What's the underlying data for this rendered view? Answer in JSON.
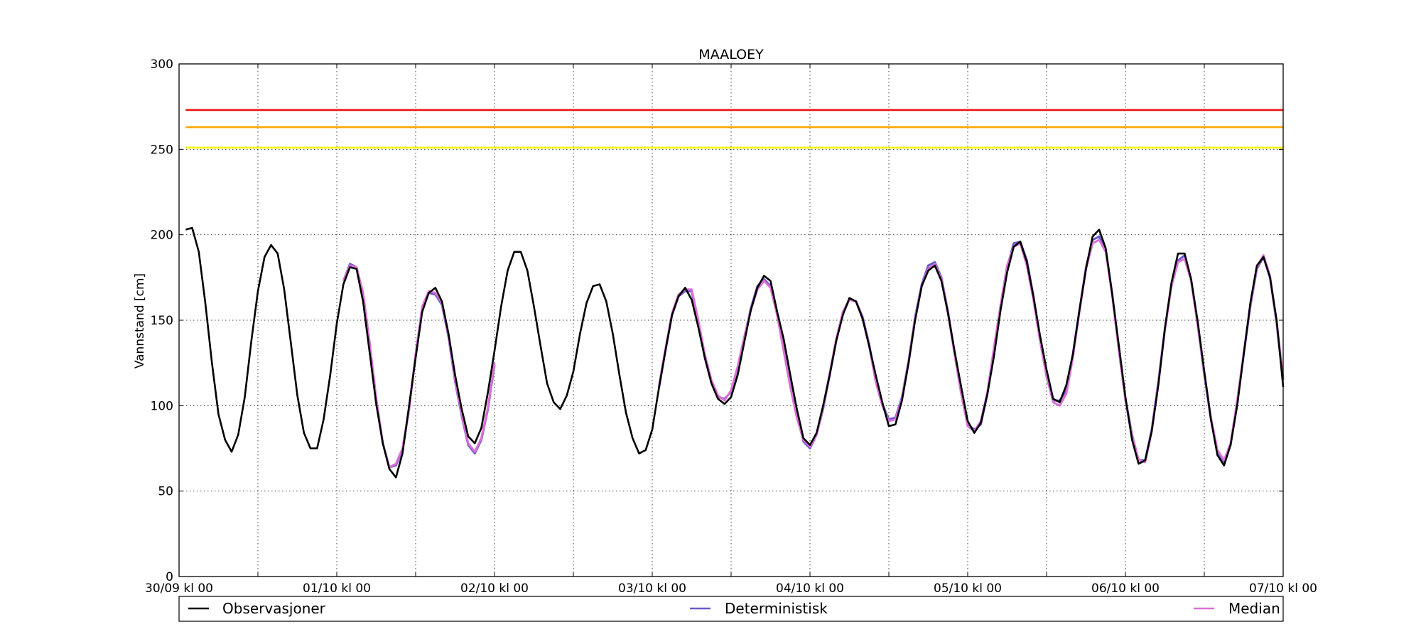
{
  "chart_data": {
    "type": "line",
    "title": "MAALOEY",
    "ylabel": "Vannstand [cm]",
    "xlabel": "",
    "x_unit": "hours since 30/09 kl 00",
    "xlim": [
      0,
      168
    ],
    "ylim": [
      0,
      300
    ],
    "x_ticks": [
      {
        "x": 0,
        "label": "30/09 kl 00"
      },
      {
        "x": 24,
        "label": "01/10 kl 00"
      },
      {
        "x": 48,
        "label": "02/10 kl 00"
      },
      {
        "x": 72,
        "label": "03/10 kl 00"
      },
      {
        "x": 96,
        "label": "04/10 kl 00"
      },
      {
        "x": 120,
        "label": "05/10 kl 00"
      },
      {
        "x": 144,
        "label": "06/10 kl 00"
      },
      {
        "x": 168,
        "label": "07/10 kl 00"
      }
    ],
    "x_minor_ticks": [
      12,
      36,
      60,
      84,
      108,
      132,
      156
    ],
    "y_ticks": [
      0,
      50,
      100,
      150,
      200,
      250,
      300
    ],
    "grid": true,
    "legend_position": "bottom",
    "thresholds": [
      {
        "value": 273,
        "color": "#ee1111"
      },
      {
        "value": 263,
        "color": "#ffa500"
      },
      {
        "value": 251,
        "color": "#ffff00"
      }
    ],
    "series": [
      {
        "name": "Observasjoner",
        "color": "#000000",
        "x": [
          1,
          2,
          3,
          4,
          5,
          6,
          7,
          8,
          9,
          10,
          11,
          12,
          13,
          14,
          15,
          16,
          17,
          18,
          19,
          20,
          21,
          22,
          23,
          24,
          25,
          26,
          27,
          28,
          29,
          30,
          31,
          32,
          33,
          34,
          35,
          36,
          37,
          38,
          39,
          40,
          41,
          42,
          43,
          44,
          45,
          46,
          47,
          48,
          49,
          50,
          51,
          52,
          53,
          54,
          55,
          56,
          57,
          58,
          59,
          60,
          61,
          62,
          63,
          64,
          65,
          66,
          67,
          68,
          69,
          70,
          71,
          72,
          73,
          74,
          75,
          76,
          77,
          78,
          79,
          80,
          81,
          82,
          83,
          84,
          85,
          86,
          87,
          88,
          89,
          90,
          91,
          92,
          93,
          94,
          95,
          96,
          97,
          98,
          99,
          100,
          101,
          102,
          103,
          104,
          105,
          106,
          107,
          108,
          109,
          110,
          111,
          112,
          113,
          114,
          115,
          116,
          117,
          118,
          119,
          120,
          121,
          122,
          123,
          124,
          125,
          126,
          127,
          128,
          129,
          130,
          131,
          132,
          133,
          134,
          135,
          136,
          137,
          138,
          139,
          140,
          141,
          142,
          143,
          144,
          145,
          146,
          147,
          148,
          149,
          150,
          151,
          152,
          153,
          154,
          155,
          156,
          157,
          158,
          159,
          160,
          161,
          162,
          163,
          164,
          165,
          166,
          167,
          168
        ],
        "values": [
          203,
          204,
          190,
          160,
          125,
          95,
          80,
          73,
          83,
          105,
          138,
          167,
          187,
          194,
          189,
          168,
          137,
          106,
          84,
          75,
          75,
          92,
          118,
          148,
          171,
          181,
          180,
          161,
          131,
          101,
          78,
          63,
          58,
          72,
          100,
          128,
          155,
          166,
          169,
          161,
          142,
          118,
          98,
          82,
          78,
          87,
          108,
          132,
          158,
          179,
          190,
          190,
          179,
          158,
          135,
          113,
          102,
          98,
          106,
          120,
          142,
          160,
          170,
          171,
          161,
          142,
          118,
          96,
          81,
          72,
          74,
          86,
          110,
          132,
          153,
          164,
          169,
          162,
          146,
          128,
          113,
          104,
          101,
          105,
          118,
          137,
          156,
          169,
          176,
          173,
          155,
          139,
          118,
          98,
          81,
          77,
          84,
          100,
          118,
          138,
          153,
          163,
          161,
          151,
          135,
          118,
          102,
          88,
          89,
          103,
          125,
          150,
          170,
          179,
          182,
          173,
          154,
          132,
          111,
          91,
          84,
          90,
          107,
          129,
          156,
          178,
          193,
          196,
          184,
          164,
          141,
          121,
          104,
          102,
          112,
          130,
          156,
          180,
          199,
          203,
          192,
          165,
          135,
          105,
          80,
          66,
          68,
          85,
          112,
          145,
          172,
          189,
          189,
          174,
          149,
          120,
          92,
          71,
          65,
          77,
          100,
          130,
          160,
          182,
          187,
          175,
          150,
          111
        ]
      },
      {
        "name": "Deterministisk",
        "color": "#6a5acd",
        "segments": [
          {
            "x": [
              25,
              26,
              27,
              28,
              29,
              30,
              31,
              32,
              33,
              34,
              35,
              36,
              37,
              38,
              39,
              40,
              41,
              42,
              43,
              44,
              45,
              46,
              47,
              48
            ],
            "values": [
              173,
              183,
              181,
              165,
              136,
              104,
              78,
              64,
              65,
              74,
              98,
              130,
              157,
              166,
              165,
              159,
              140,
              114,
              94,
              77,
              72,
              80,
              98,
              124
            ]
          },
          {
            "x": [
              73,
              74,
              75,
              76,
              77,
              78,
              79,
              80,
              81,
              82,
              83,
              84,
              85,
              86,
              87,
              88,
              89,
              90,
              91,
              92,
              93,
              94,
              95,
              96,
              97,
              98,
              99,
              100,
              101,
              102,
              103,
              104,
              105,
              106,
              107,
              108,
              109,
              110,
              111,
              112,
              113,
              114,
              115,
              116,
              117,
              118,
              119,
              120,
              121,
              122,
              123,
              124,
              125,
              126,
              127,
              128,
              129,
              130,
              131,
              132,
              133,
              134,
              135,
              136,
              137,
              138,
              139,
              140,
              141,
              142,
              143,
              144,
              145,
              146,
              147,
              148,
              149,
              150,
              151,
              152,
              153,
              154,
              155,
              156,
              157,
              158,
              159,
              160,
              161,
              162,
              163,
              164,
              165,
              166,
              167,
              168
            ],
            "values": [
              110,
              132,
              153,
              164,
              167,
              167,
              148,
              128,
              114,
              105,
              104,
              108,
              122,
              140,
              157,
              170,
              174,
              170,
              154,
              133,
              112,
              95,
              79,
              75,
              83,
              98,
              118,
              138,
              154,
              162,
              161,
              152,
              136,
              115,
              101,
              92,
              93,
              105,
              126,
              152,
              171,
              182,
              184,
              175,
              155,
              131,
              108,
              89,
              86,
              89,
              107,
              133,
              158,
              181,
              195,
              196,
              185,
              164,
              139,
              117,
              103,
              103,
              109,
              130,
              156,
              181,
              197,
              199,
              191,
              165,
              133,
              104,
              83,
              68,
              68,
              86,
              114,
              145,
              170,
              185,
              188,
              173,
              147,
              118,
              92,
              73,
              67,
              77,
              102,
              130,
              158,
              180,
              187,
              175,
              148,
              115
            ]
          }
        ]
      },
      {
        "name": "Median",
        "color": "#da70d6",
        "segments": [
          {
            "x": [
              25,
              26,
              27,
              28,
              29,
              30,
              31,
              32,
              33,
              34,
              35,
              36,
              37,
              38,
              39,
              40,
              41,
              42,
              43,
              44,
              45,
              46,
              47,
              48
            ],
            "values": [
              173,
              182,
              181,
              166,
              137,
              104,
              78,
              64,
              66,
              75,
              98,
              130,
              158,
              167,
              166,
              160,
              141,
              115,
              95,
              78,
              73,
              81,
              99,
              125
            ]
          },
          {
            "x": [
              73,
              74,
              75,
              76,
              77,
              78,
              79,
              80,
              81,
              82,
              83,
              84,
              85,
              86,
              87,
              88,
              89,
              90,
              91,
              92,
              93,
              94,
              95,
              96,
              97,
              98,
              99,
              100,
              101,
              102,
              103,
              104,
              105,
              106,
              107,
              108,
              109,
              110,
              111,
              112,
              113,
              114,
              115,
              116,
              117,
              118,
              119,
              120,
              121,
              122,
              123,
              124,
              125,
              126,
              127,
              128,
              129,
              130,
              131,
              132,
              133,
              134,
              135,
              136,
              137,
              138,
              139,
              140,
              141,
              142,
              143,
              144,
              145,
              146,
              147,
              148,
              149,
              150,
              151,
              152,
              153,
              154,
              155,
              156,
              157,
              158,
              159,
              160,
              161,
              162,
              163,
              164,
              165,
              166,
              167,
              168
            ],
            "values": [
              111,
              133,
              154,
              165,
              168,
              168,
              150,
              130,
              115,
              106,
              103,
              109,
              123,
              140,
              156,
              168,
              173,
              169,
              153,
              132,
              111,
              93,
              80,
              76,
              83,
              99,
              119,
              139,
              155,
              162,
              161,
              151,
              135,
              114,
              100,
              91,
              92,
              104,
              125,
              151,
              170,
              180,
              183,
              174,
              154,
              130,
              107,
              88,
              85,
              91,
              108,
              134,
              159,
              182,
              193,
              195,
              182,
              162,
              138,
              117,
              102,
              100,
              107,
              128,
              155,
              180,
              195,
              197,
              190,
              164,
              132,
              103,
              82,
              68,
              67,
              85,
              113,
              144,
              170,
              184,
              186,
              173,
              147,
              119,
              93,
              74,
              68,
              78,
              103,
              131,
              159,
              181,
              188,
              176,
              149,
              116
            ]
          }
        ]
      }
    ]
  }
}
